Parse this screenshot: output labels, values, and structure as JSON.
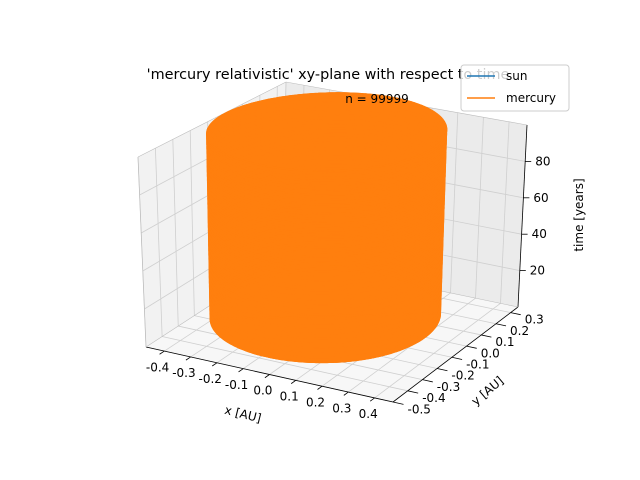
{
  "chart_data": {
    "type": "line",
    "projection": "3d",
    "title": "'mercury relativistic' xy-plane with respect to time",
    "annotation": "n = 99999",
    "xlabel": "x [AU]",
    "ylabel": "y [AU]",
    "zlabel": "time [years]",
    "xlim": [
      -0.47,
      0.47
    ],
    "ylim": [
      -0.5,
      0.35
    ],
    "zlim": [
      0,
      100
    ],
    "x_ticks": [
      "-0.4",
      "-0.3",
      "-0.2",
      "-0.1",
      "0.0",
      "0.1",
      "0.2",
      "0.3",
      "0.4"
    ],
    "x_tick_values": [
      -0.4,
      -0.3,
      -0.2,
      -0.1,
      0.0,
      0.1,
      0.2,
      0.3,
      0.4
    ],
    "y_ticks": [
      "-0.5",
      "-0.4",
      "-0.3",
      "-0.2",
      "-0.1",
      "0.0",
      "0.1",
      "0.2",
      "0.3"
    ],
    "y_tick_values": [
      -0.5,
      -0.4,
      -0.3,
      -0.2,
      -0.1,
      0.0,
      0.1,
      0.2,
      0.3
    ],
    "z_ticks": [
      "20",
      "40",
      "60",
      "80"
    ],
    "z_tick_values": [
      20,
      40,
      60,
      80
    ],
    "grid": true,
    "legend_position": "top-right",
    "series": [
      {
        "name": "sun",
        "color": "#1f77b4",
        "x": [
          0.0,
          0.0
        ],
        "y": [
          0.0,
          0.0
        ],
        "t": [
          0,
          100
        ]
      },
      {
        "name": "mercury",
        "color": "#ff7f0e",
        "orbit": {
          "semi_major_axis": 0.387,
          "eccentricity": 0.2056,
          "t_range": [
            0,
            100
          ]
        }
      }
    ]
  }
}
